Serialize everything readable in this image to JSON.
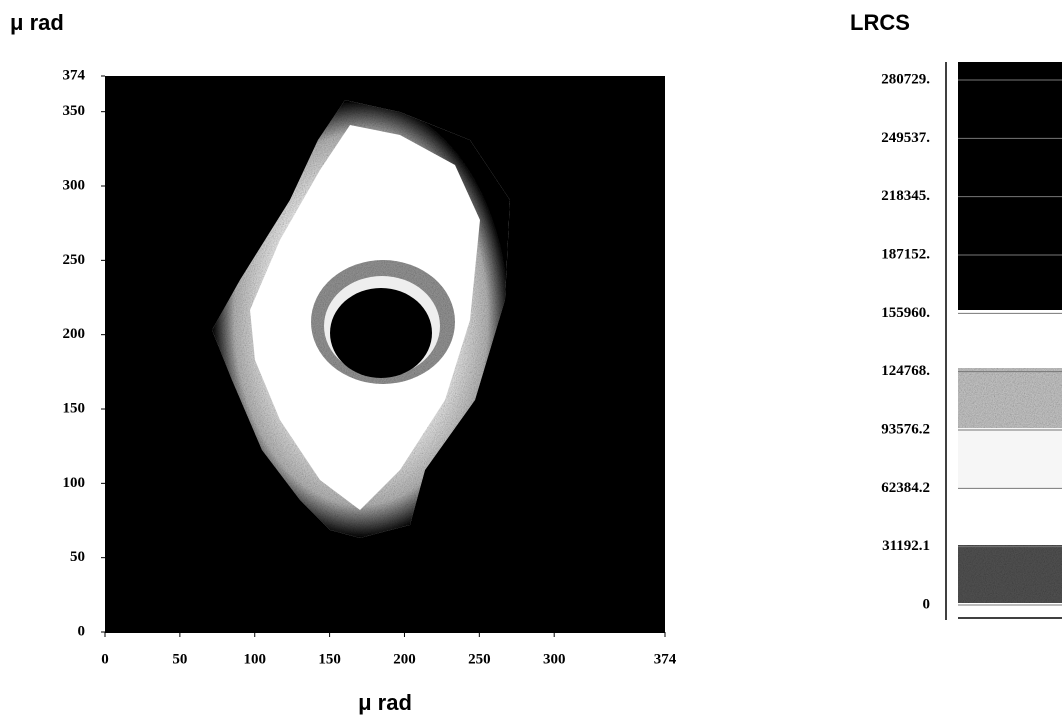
{
  "chart_data": {
    "type": "heatmap",
    "y_label": "μ rad",
    "x_label": "μ rad",
    "xlim": [
      0,
      374
    ],
    "xticks": [
      0,
      50,
      100,
      150,
      200,
      250,
      300,
      374
    ],
    "ylim": [
      0,
      374
    ],
    "yticks": [
      0,
      50,
      100,
      150,
      200,
      250,
      300,
      350,
      374
    ],
    "colorbar": {
      "title": "LRCS",
      "lim": [
        0,
        280729
      ],
      "ticks": [
        0,
        31192.1,
        62384.2,
        93576.2,
        {
          "value": 124768,
          "label": "124768."
        },
        {
          "value": 155960,
          "label": "155960."
        },
        {
          "value": 187152,
          "label": "187152."
        },
        {
          "value": 218345,
          "label": "218345."
        },
        {
          "value": 249537,
          "label": "249537."
        },
        {
          "value": 280729,
          "label": "280729."
        }
      ]
    }
  }
}
